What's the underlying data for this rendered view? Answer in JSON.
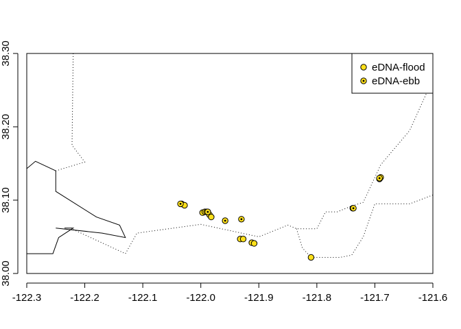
{
  "chart_data": {
    "type": "scatter",
    "title": "",
    "xlabel": "",
    "ylabel": "",
    "xlim": [
      -122.3,
      -121.6
    ],
    "ylim": [
      38.0,
      38.3
    ],
    "x_ticks": [
      -122.3,
      -122.2,
      -122.1,
      -122.0,
      -121.9,
      -121.8,
      -121.7,
      -121.6
    ],
    "x_tick_labels": [
      "-122.3",
      "-122.2",
      "-122.1",
      "-122.0",
      "-121.9",
      "-121.8",
      "-121.7",
      "-121.6"
    ],
    "y_ticks": [
      38.0,
      38.1,
      38.2,
      38.3
    ],
    "y_tick_labels": [
      "38.00",
      "38.10",
      "38.20",
      "38.30"
    ],
    "grid": false,
    "legend_position": "top-right",
    "colors": {
      "point_fill": "#ffe01a",
      "point_stroke": "#000000",
      "line": "#000000"
    },
    "series": [
      {
        "name": "eDNA-flood",
        "marker": "filled-circle",
        "points": [
          [
            -122.033,
            38.095
          ],
          [
            -122.028,
            38.093
          ],
          [
            -121.997,
            38.083
          ],
          [
            -121.993,
            38.084
          ],
          [
            -121.99,
            38.084
          ],
          [
            -121.985,
            38.08
          ],
          [
            -121.982,
            38.077
          ],
          [
            -121.932,
            38.047
          ],
          [
            -121.927,
            38.047
          ],
          [
            -121.912,
            38.042
          ],
          [
            -121.908,
            38.041
          ],
          [
            -121.81,
            38.022
          ],
          [
            -121.738,
            38.089
          ],
          [
            -121.692,
            38.129
          ],
          [
            -121.69,
            38.131
          ]
        ]
      },
      {
        "name": "eDNA-ebb",
        "marker": "circle-with-dot",
        "points": [
          [
            -122.035,
            38.095
          ],
          [
            -121.988,
            38.084
          ],
          [
            -121.958,
            38.072
          ],
          [
            -121.93,
            38.074
          ],
          [
            -121.737,
            38.089
          ],
          [
            -121.692,
            38.13
          ]
        ]
      }
    ],
    "map_lines": [
      {
        "style": "solid",
        "points": [
          [
            -122.3,
            38.143
          ],
          [
            -122.285,
            38.153
          ],
          [
            -122.25,
            38.14
          ],
          [
            -122.25,
            38.112
          ],
          [
            -122.18,
            38.077
          ],
          [
            -122.14,
            38.066
          ],
          [
            -122.13,
            38.049
          ],
          [
            -122.17,
            38.055
          ],
          [
            -122.25,
            38.062
          ]
        ]
      },
      {
        "style": "solid",
        "points": [
          [
            -122.3,
            38.027
          ],
          [
            -122.255,
            38.027
          ],
          [
            -122.245,
            38.049
          ],
          [
            -122.22,
            38.062
          ],
          [
            -122.235,
            38.062
          ]
        ]
      },
      {
        "style": "dotted",
        "points": [
          [
            -122.22,
            38.3
          ],
          [
            -122.222,
            38.175
          ],
          [
            -122.2,
            38.152
          ],
          [
            -122.25,
            38.14
          ]
        ]
      },
      {
        "style": "dotted",
        "points": [
          [
            -122.22,
            38.06
          ],
          [
            -122.13,
            38.027
          ],
          [
            -122.11,
            38.055
          ],
          [
            -122.0,
            38.067
          ],
          [
            -121.9,
            38.05
          ],
          [
            -121.85,
            38.066
          ],
          [
            -121.835,
            38.061
          ],
          [
            -121.8,
            38.061
          ],
          [
            -121.785,
            38.084
          ],
          [
            -121.765,
            38.084
          ],
          [
            -121.74,
            38.092
          ],
          [
            -121.72,
            38.097
          ],
          [
            -121.69,
            38.148
          ],
          [
            -121.64,
            38.195
          ],
          [
            -121.6,
            38.265
          ]
        ]
      },
      {
        "style": "dotted",
        "points": [
          [
            -121.835,
            38.061
          ],
          [
            -121.825,
            38.035
          ],
          [
            -121.81,
            38.022
          ],
          [
            -121.76,
            38.022
          ],
          [
            -121.74,
            38.025
          ],
          [
            -121.72,
            38.05
          ],
          [
            -121.7,
            38.095
          ],
          [
            -121.67,
            38.095
          ],
          [
            -121.64,
            38.095
          ],
          [
            -121.6,
            38.107
          ]
        ]
      }
    ]
  }
}
